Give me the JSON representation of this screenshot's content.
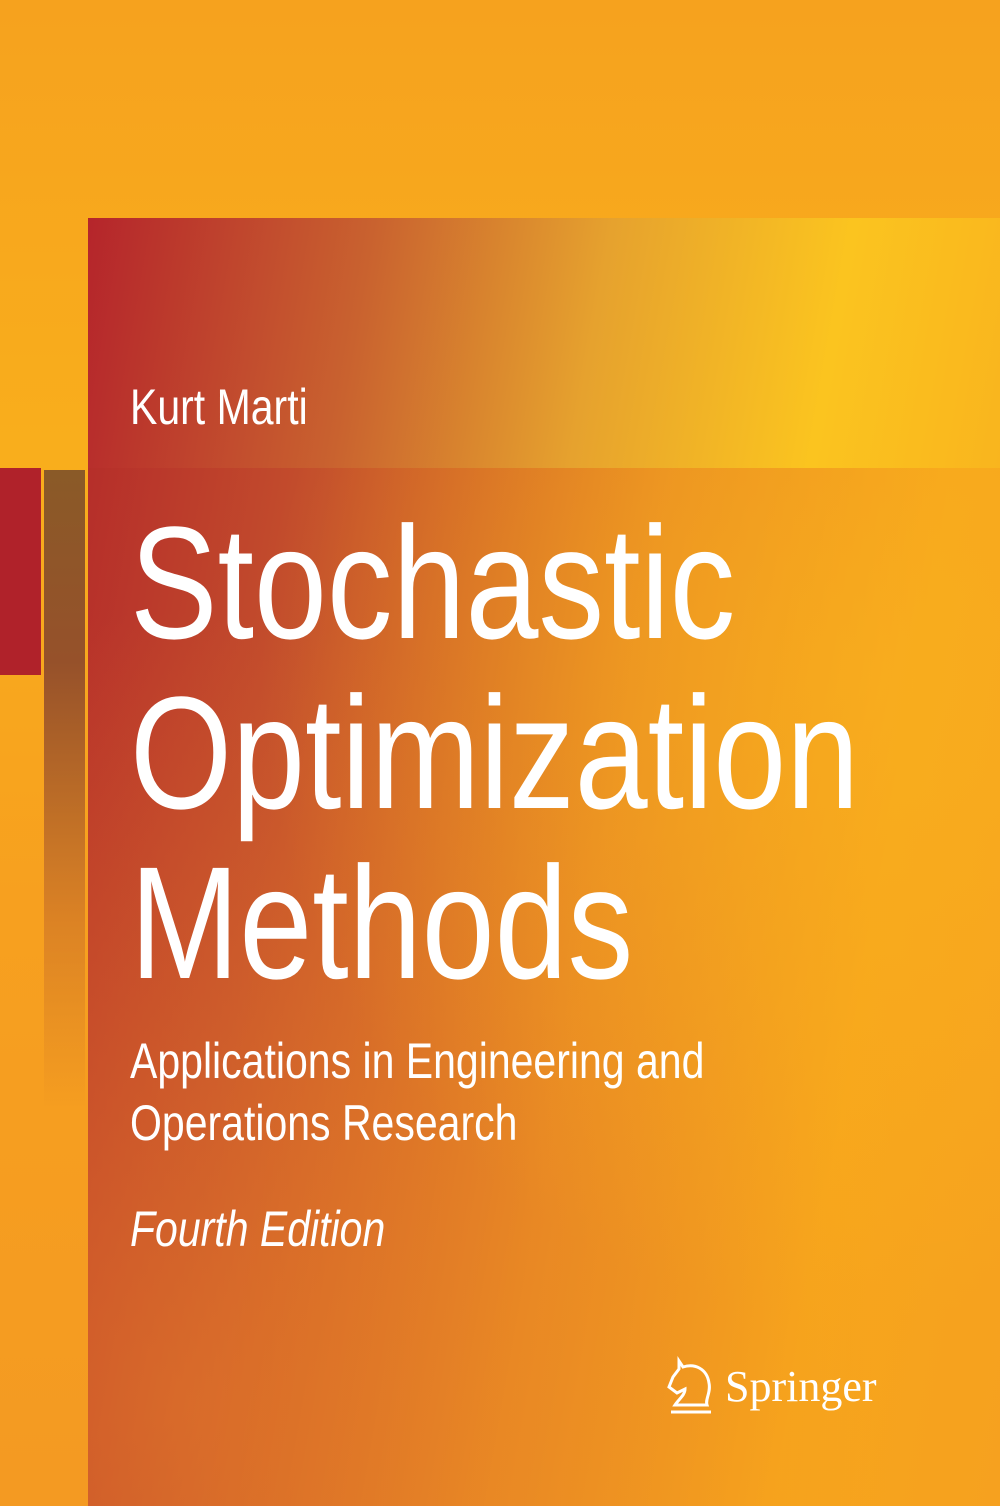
{
  "cover": {
    "author": "Kurt Marti",
    "title_lines": [
      "Stochastic",
      "Optimization",
      "Methods"
    ],
    "subtitle_lines": [
      "Applications in Engineering and",
      "Operations Research"
    ],
    "edition": "Fourth Edition",
    "publisher": "Springer",
    "publisher_icon": "springer-horse-icon"
  },
  "colors": {
    "background": "#f6a21e",
    "accent_red": "#b0222a",
    "accent_brown": "#8a5a28",
    "text": "#ffffff"
  }
}
